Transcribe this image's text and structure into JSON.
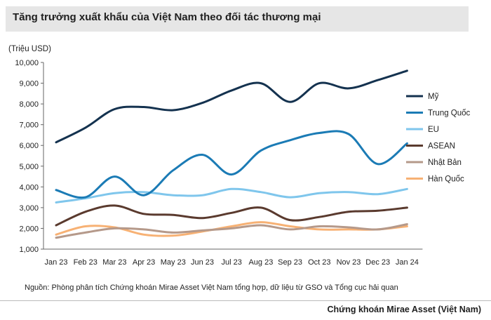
{
  "title": "Tăng trưởng xuất khẩu của Việt Nam theo đối tác thương mại",
  "unit_label": "(Triệu USD)",
  "source": "Nguồn: Phòng phân tích Chứng khoán Mirae Asset Việt Nam tổng hợp, dữ liệu từ GSO và Tổng cục hải quan",
  "footer": "Chứng khoán Mirae Asset (Việt Nam)",
  "chart_data": {
    "type": "line",
    "categories": [
      "Jan 23",
      "Feb 23",
      "Mar 23",
      "Apr 23",
      "May 23",
      "Jun 23",
      "Jul 23",
      "Aug 23",
      "Sep 23",
      "Oct 23",
      "Nov 23",
      "Dec 23",
      "Jan 24"
    ],
    "ylim": [
      1000,
      10000
    ],
    "yticks": [
      1000,
      2000,
      3000,
      4000,
      5000,
      6000,
      7000,
      8000,
      9000,
      10000
    ],
    "ytick_labels": [
      "1,000",
      "2,000",
      "3,000",
      "4,000",
      "5,000",
      "6,000",
      "7,000",
      "8,000",
      "9,000",
      "10,000"
    ],
    "legend_position": "right",
    "grid": false,
    "series": [
      {
        "name": "Mỹ",
        "color": "#14324f",
        "values": [
          6150,
          6850,
          7750,
          7850,
          7700,
          8050,
          8650,
          9000,
          8100,
          9000,
          8750,
          9150,
          9600
        ]
      },
      {
        "name": "Trung Quốc",
        "color": "#1b7bb5",
        "values": [
          3850,
          3500,
          4500,
          3600,
          4800,
          5550,
          4600,
          5750,
          6250,
          6600,
          6550,
          5100,
          6100
        ]
      },
      {
        "name": "EU",
        "color": "#7fc6ec",
        "values": [
          3250,
          3450,
          3700,
          3750,
          3600,
          3600,
          3900,
          3750,
          3500,
          3700,
          3750,
          3650,
          3900
        ]
      },
      {
        "name": "ASEAN",
        "color": "#5a3a2e",
        "values": [
          2150,
          2800,
          3100,
          2700,
          2650,
          2500,
          2750,
          3000,
          2400,
          2550,
          2800,
          2850,
          3000
        ]
      },
      {
        "name": "Nhật Bản",
        "color": "#b5998a",
        "values": [
          1550,
          1800,
          2000,
          1950,
          1800,
          1900,
          2000,
          2150,
          1950,
          2100,
          2050,
          1950,
          2200
        ]
      },
      {
        "name": "Hàn Quốc",
        "color": "#f7b174",
        "values": [
          1700,
          2100,
          2050,
          1700,
          1650,
          1850,
          2100,
          2300,
          2100,
          1950,
          1950,
          1950,
          2100
        ]
      }
    ]
  }
}
